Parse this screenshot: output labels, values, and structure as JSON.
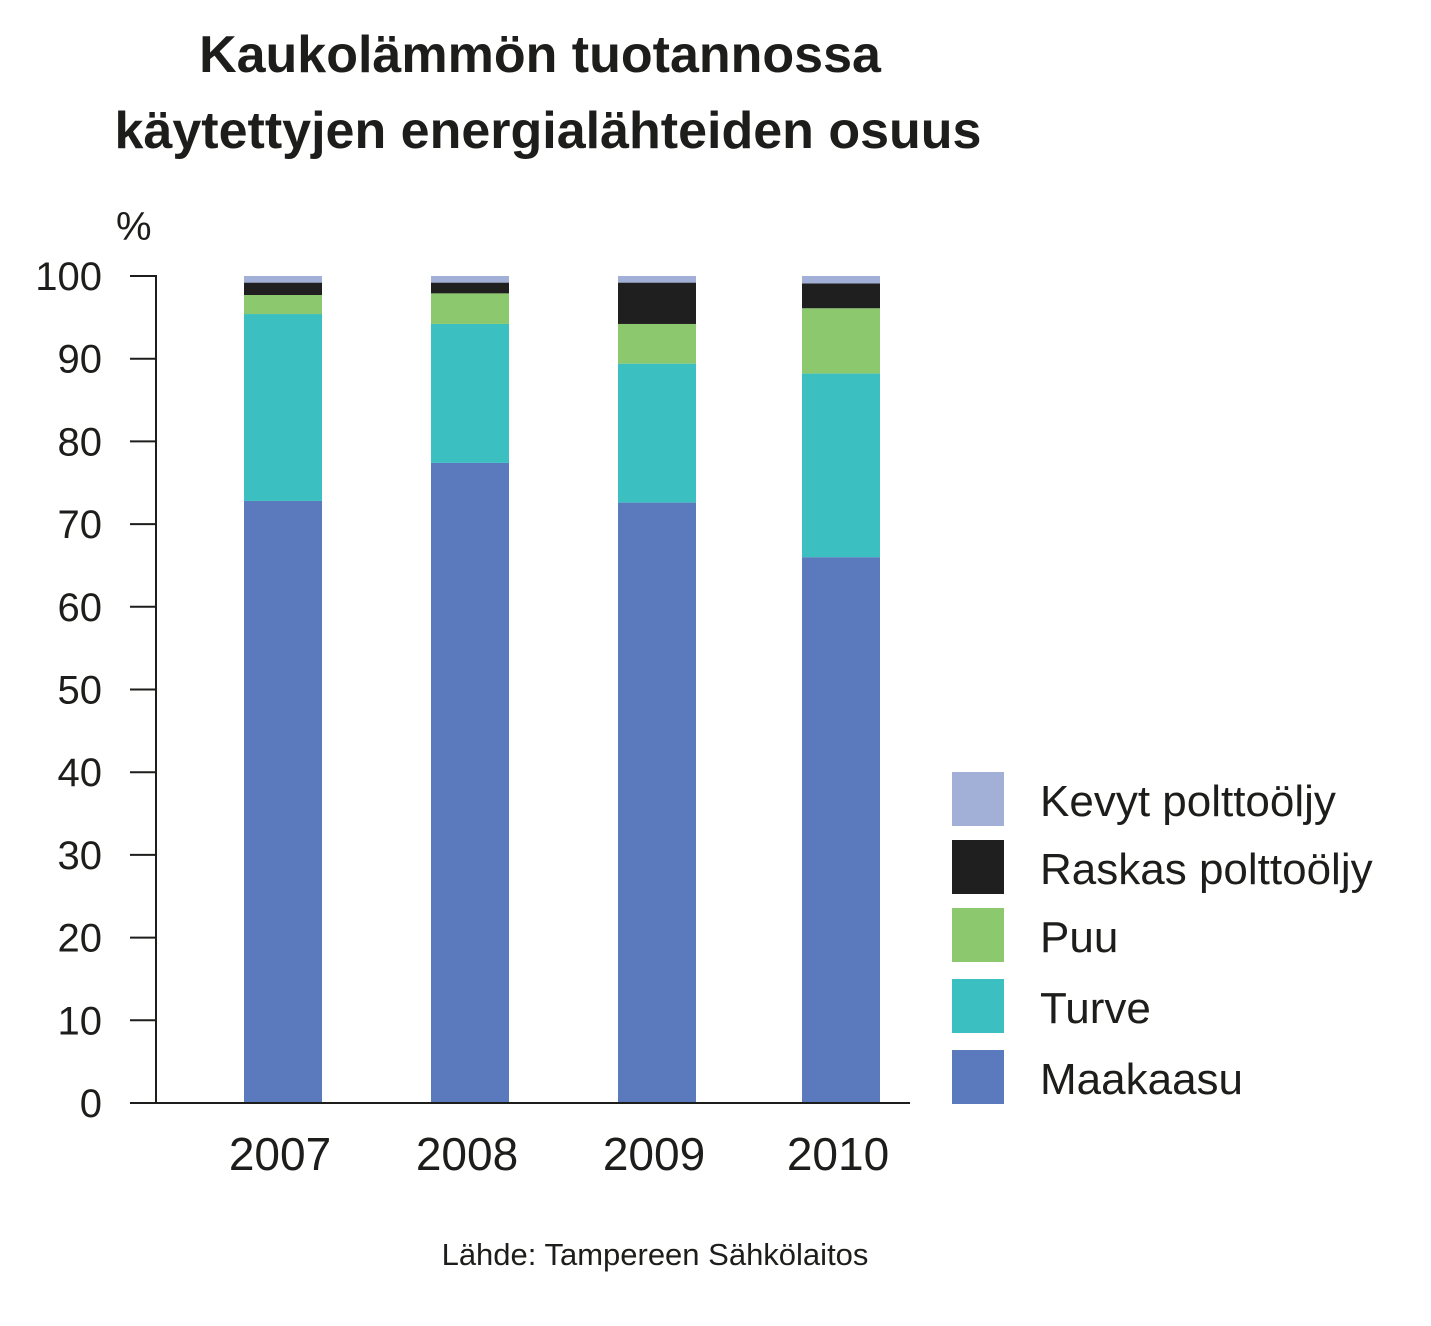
{
  "chart_data": {
    "type": "bar",
    "stacked": true,
    "title": [
      "Kaukolämmön tuotannossa",
      "käytettyjen energialähteiden osuus"
    ],
    "ylabel": "%",
    "xlabel": "",
    "ylim": [
      0,
      100
    ],
    "yticks": [
      "0",
      "10",
      "20",
      "30",
      "40",
      "50",
      "60",
      "70",
      "80",
      "90",
      "100"
    ],
    "categories": [
      "2007",
      "2008",
      "2009",
      "2010"
    ],
    "series": [
      {
        "name": "Maakaasu",
        "color": "#5a7abd",
        "values": [
          72.8,
          77.4,
          72.6,
          66.0
        ]
      },
      {
        "name": "Turve",
        "color": "#3bbfc1",
        "values": [
          22.6,
          16.8,
          16.8,
          22.2
        ]
      },
      {
        "name": "Puu",
        "color": "#8cc86e",
        "values": [
          2.3,
          3.7,
          4.8,
          7.9
        ]
      },
      {
        "name": "Raskas polttoöljy",
        "color": "#1f1f1f",
        "values": [
          1.5,
          1.3,
          5.0,
          3.0
        ]
      },
      {
        "name": "Kevyt polttoöljy",
        "color": "#a2b0d8",
        "values": [
          0.8,
          0.8,
          0.8,
          0.9
        ]
      }
    ],
    "legend_position": "bottom-right",
    "grid": false,
    "source": "Lähde: Tampereen Sähkölaitos"
  }
}
